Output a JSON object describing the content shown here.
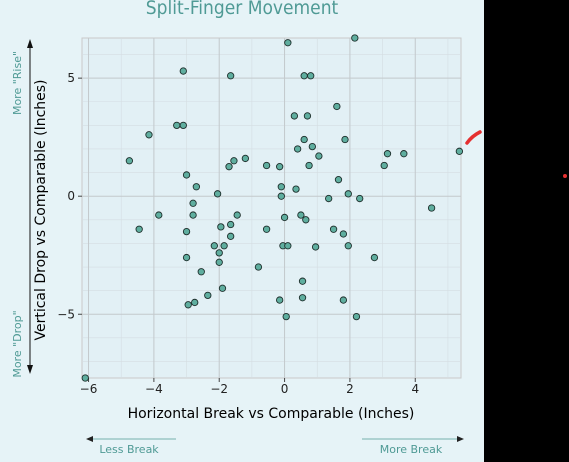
{
  "chart_data": {
    "type": "scatter",
    "title": "Split-Finger Movement",
    "xlabel": "Horizontal Break vs Comparable (Inches)",
    "ylabel": "Vertical Drop vs Comparable (Inches)",
    "xlim": [
      -6.2,
      5.4
    ],
    "ylim": [
      -7.7,
      6.7
    ],
    "xticks": [
      -6,
      -4,
      -2,
      0,
      2,
      4
    ],
    "yticks": [
      -5,
      0,
      5
    ],
    "grid": true,
    "hints": {
      "y_top": "More \"Rise\"",
      "y_bottom": "More \"Drop\"",
      "x_left": "Less Break",
      "x_right": "More Break"
    },
    "point_color": "#5fae9f",
    "points": [
      [
        2.15,
        6.7
      ],
      [
        0.1,
        6.5
      ],
      [
        -3.1,
        5.3
      ],
      [
        -1.65,
        5.1
      ],
      [
        0.6,
        5.1
      ],
      [
        0.8,
        5.1
      ],
      [
        1.6,
        3.8
      ],
      [
        0.3,
        3.4
      ],
      [
        0.7,
        3.4
      ],
      [
        -3.3,
        3.0
      ],
      [
        -3.1,
        3.0
      ],
      [
        -4.15,
        2.6
      ],
      [
        0.6,
        2.4
      ],
      [
        1.85,
        2.4
      ],
      [
        0.85,
        2.1
      ],
      [
        0.4,
        2.0
      ],
      [
        1.05,
        1.7
      ],
      [
        3.15,
        1.8
      ],
      [
        3.65,
        1.8
      ],
      [
        5.35,
        1.9
      ],
      [
        -1.2,
        1.6
      ],
      [
        -1.55,
        1.5
      ],
      [
        -1.7,
        1.25
      ],
      [
        -0.55,
        1.3
      ],
      [
        -0.15,
        1.25
      ],
      [
        3.05,
        1.3
      ],
      [
        0.75,
        1.3
      ],
      [
        -4.75,
        1.5
      ],
      [
        -3.0,
        0.9
      ],
      [
        -2.7,
        0.4
      ],
      [
        -0.1,
        0.4
      ],
      [
        0.35,
        0.3
      ],
      [
        1.65,
        0.7
      ],
      [
        -2.05,
        0.1
      ],
      [
        1.95,
        0.1
      ],
      [
        2.3,
        -0.1
      ],
      [
        1.35,
        -0.1
      ],
      [
        -0.1,
        0.0
      ],
      [
        -2.8,
        -0.3
      ],
      [
        -3.85,
        -0.8
      ],
      [
        -2.8,
        -0.8
      ],
      [
        -1.45,
        -0.8
      ],
      [
        0.5,
        -0.8
      ],
      [
        0.65,
        -1.0
      ],
      [
        0.0,
        -0.9
      ],
      [
        4.5,
        -0.5
      ],
      [
        -4.45,
        -1.4
      ],
      [
        -3.0,
        -1.5
      ],
      [
        -1.65,
        -1.2
      ],
      [
        -1.95,
        -1.3
      ],
      [
        -0.55,
        -1.4
      ],
      [
        1.5,
        -1.4
      ],
      [
        1.8,
        -1.6
      ],
      [
        -1.65,
        -1.7
      ],
      [
        -2.15,
        -2.1
      ],
      [
        -1.85,
        -2.1
      ],
      [
        -2.0,
        -2.4
      ],
      [
        -0.05,
        -2.1
      ],
      [
        0.1,
        -2.1
      ],
      [
        0.95,
        -2.15
      ],
      [
        1.95,
        -2.1
      ],
      [
        -3.0,
        -2.6
      ],
      [
        -2.0,
        -2.8
      ],
      [
        2.75,
        -2.6
      ],
      [
        -0.8,
        -3.0
      ],
      [
        -2.55,
        -3.2
      ],
      [
        0.55,
        -3.6
      ],
      [
        -1.9,
        -3.9
      ],
      [
        -2.35,
        -4.2
      ],
      [
        -2.75,
        -4.5
      ],
      [
        -2.95,
        -4.6
      ],
      [
        -0.15,
        -4.4
      ],
      [
        0.55,
        -4.3
      ],
      [
        1.8,
        -4.4
      ],
      [
        0.05,
        -5.1
      ],
      [
        2.2,
        -5.1
      ],
      [
        -6.1,
        -7.7
      ]
    ]
  }
}
